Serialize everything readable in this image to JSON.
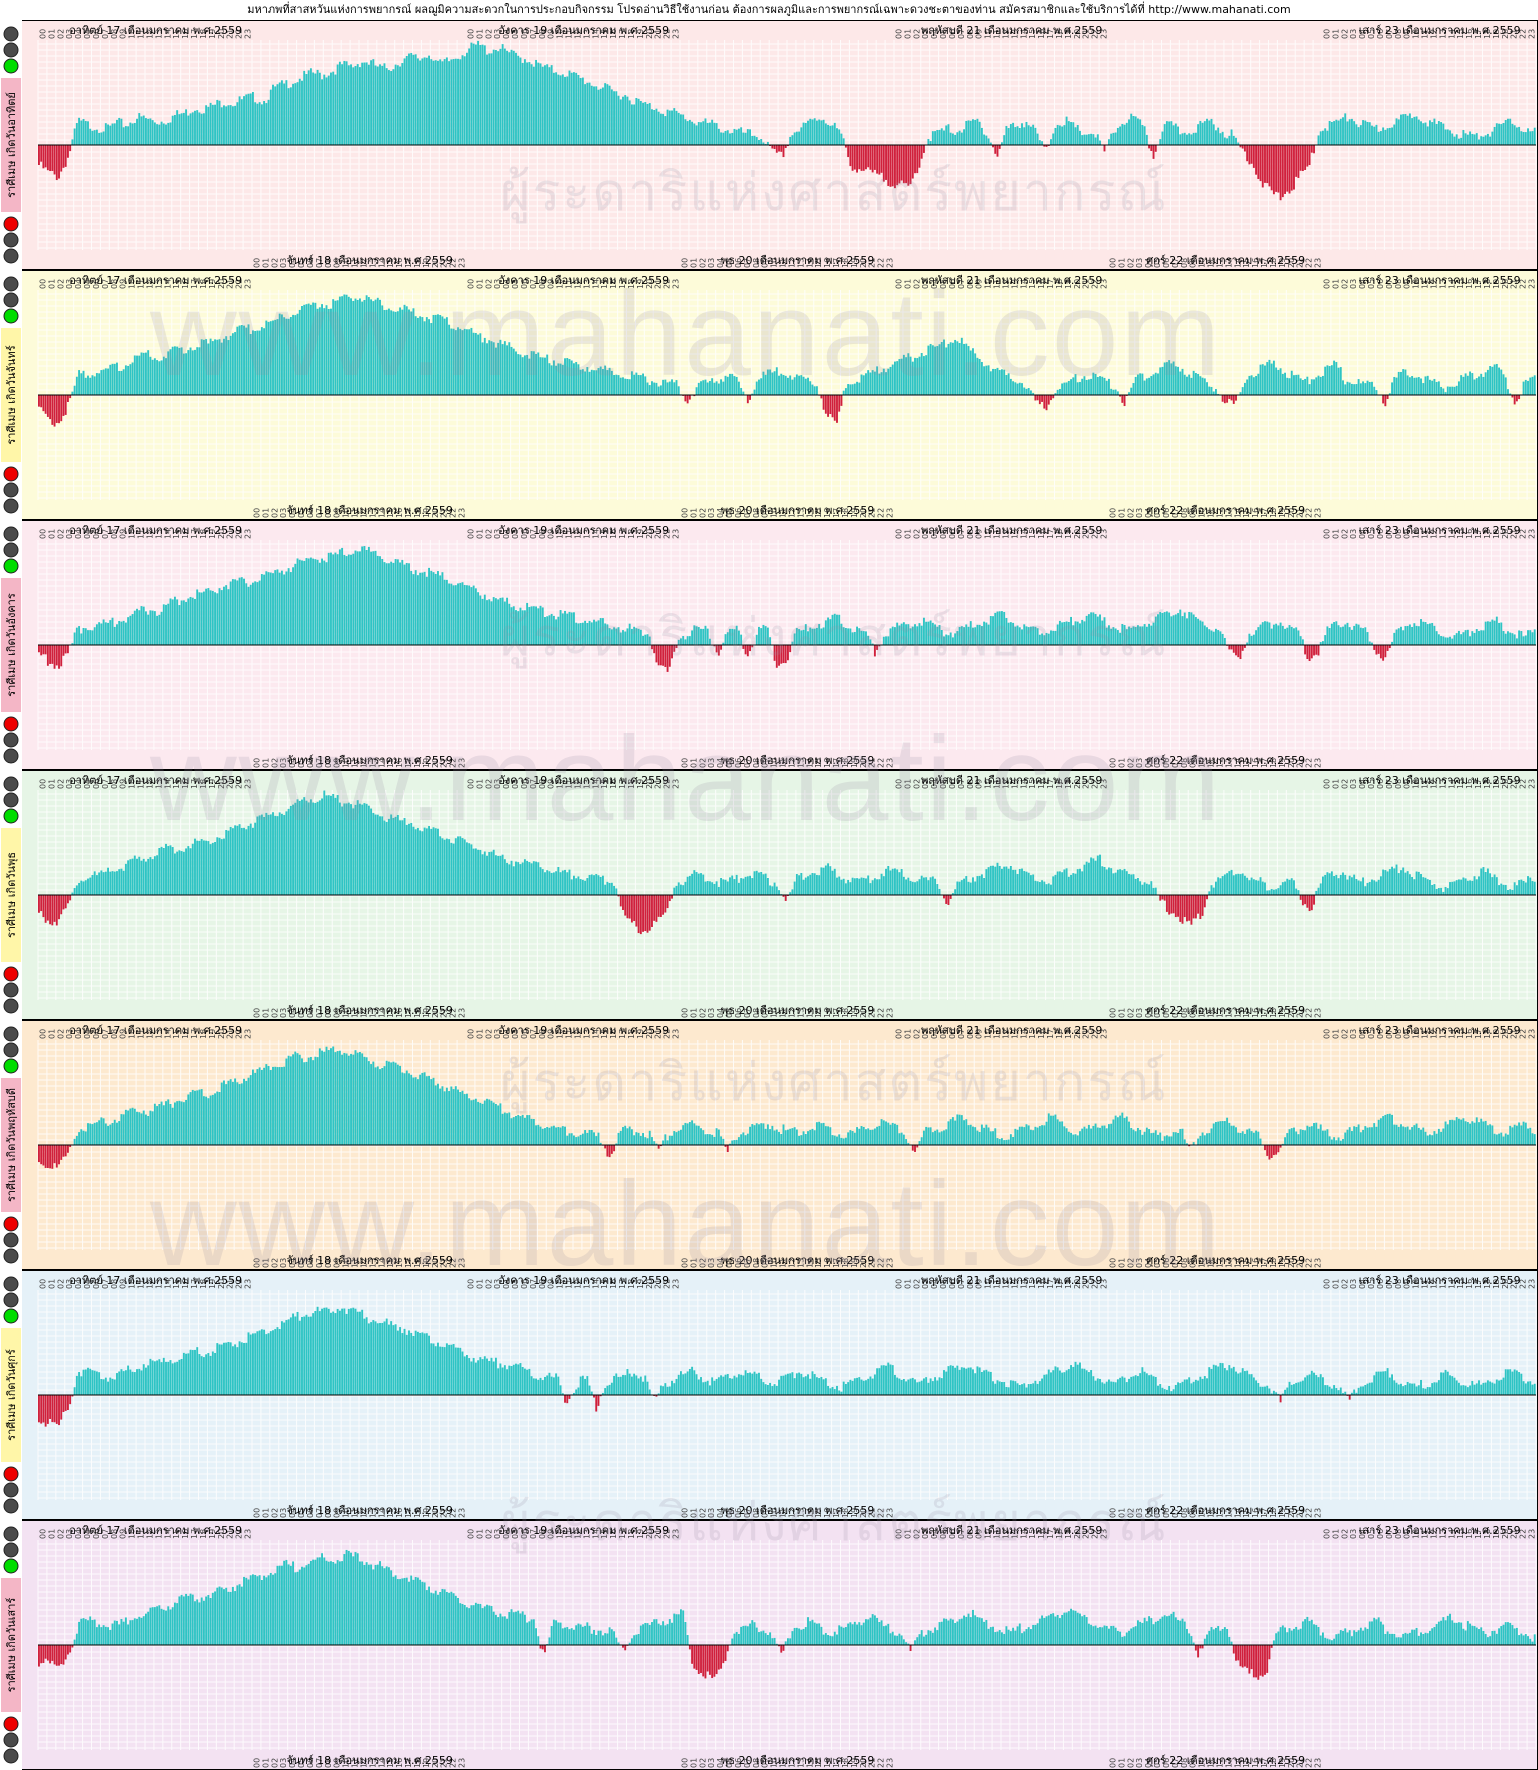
{
  "header": {
    "text": "มหาภพที่สาสหวันแห่งการพยากรณ์ ผลฌูมิความสะดวกในการประกอบกิจกรรม โปรดอ่านวิธีใช้งานก่อน ต้องการผลภูมิและการพยากรณ์เฉพาะดวงชะตาของท่าน สมัครสมาชิกและใช้บริการได้ที่  http://www.mahanati.com"
  },
  "watermarks": {
    "url": "www.mahanati.com",
    "tagline": "ผู้ระดาริแห่งศาสตร์พยากรณ์"
  },
  "colors": {
    "positive": "#2ec4c4",
    "negative": "#d0203c",
    "light_on_green": "#00dd00",
    "light_on_red": "#ee0000",
    "light_off": "#4a4a4a",
    "label_pink": "#f4b6c6",
    "panel_backgrounds": [
      "#fde8e8",
      "#fdfbd9",
      "#fce9ef",
      "#e6f5e6",
      "#fde9cf",
      "#e5f1f8",
      "#f3e2f2"
    ]
  },
  "hour_labels": [
    "00",
    "01",
    "02",
    "03",
    "04",
    "05",
    "06",
    "07",
    "08",
    "09",
    "10",
    "11",
    "12",
    "13",
    "14",
    "15",
    "16",
    "17",
    "18",
    "19",
    "20",
    "21",
    "22",
    "23"
  ],
  "top_day_labels": [
    "อาทิตย์ 17 เดือนมกราคม พ.ศ.2559",
    "อังคาร 19 เดือนมกราคม พ.ศ.2559",
    "พฤหัสบดี 21 เดือนมกราคม พ.ศ.2559",
    "เสาร์ 23 เดือนมกราคม พ.ศ.2559"
  ],
  "bottom_day_labels": [
    "จันทร์ 18 เดือนมกราคม พ.ศ.2559",
    "พุธ 20 เดือนมกราคม พ.ศ.2559",
    "ศุกร์ 22 เดือนมกราคม พ.ศ.2559"
  ],
  "chart_data": [
    {
      "type": "bar",
      "panel_label": "ราศีเมษ เกิดวันอาทิตย์",
      "x_unit": "hour",
      "days": 7,
      "values": [
        -50,
        -70,
        -80,
        -30,
        60,
        50,
        45,
        40,
        55,
        50,
        70,
        65,
        58,
        62,
        75,
        80,
        95,
        90,
        100,
        110,
        105,
        115,
        120,
        110,
        140,
        150,
        160,
        170,
        180,
        175,
        185,
        200,
        195,
        210,
        205,
        190,
        195,
        210,
        220,
        215,
        230,
        200,
        210,
        225,
        240,
        250,
        235,
        245,
        230,
        220,
        215,
        200,
        190,
        185,
        180,
        170,
        160,
        150,
        140,
        130,
        125,
        110,
        100,
        95,
        85,
        80,
        70,
        60,
        55,
        50,
        40,
        35,
        30,
        25,
        20,
        -20,
        -30,
        30,
        40,
        60,
        70,
        55,
        30,
        -50,
        -60,
        -70,
        -80,
        -90,
        -100,
        -110,
        -50,
        20,
        30,
        40,
        35,
        50,
        60,
        30,
        -30,
        40,
        50,
        60,
        30,
        -20,
        55,
        60,
        40,
        30,
        30,
        -20,
        35,
        60,
        70,
        40,
        -30,
        50,
        45,
        30,
        40,
        50,
        60,
        35,
        25,
        -10,
        -40,
        -90,
        -120,
        -130,
        -110,
        -80,
        -50,
        40,
        50,
        60,
        70,
        55,
        45,
        40,
        50,
        60,
        70,
        80,
        60,
        50,
        40,
        30,
        25,
        20,
        30,
        40,
        50,
        60,
        35,
        30
      ]
    },
    {
      "type": "bar",
      "panel_label": "ราศีเมษ เกิดวันจันทร์",
      "x_unit": "hour",
      "days": 7,
      "values": [
        -40,
        -60,
        -70,
        -20,
        50,
        55,
        60,
        65,
        70,
        80,
        90,
        100,
        95,
        105,
        110,
        120,
        130,
        125,
        140,
        150,
        160,
        165,
        170,
        180,
        190,
        200,
        210,
        220,
        230,
        225,
        235,
        250,
        245,
        240,
        230,
        220,
        215,
        210,
        200,
        195,
        190,
        180,
        170,
        160,
        150,
        140,
        130,
        120,
        110,
        100,
        95,
        90,
        85,
        80,
        75,
        70,
        65,
        60,
        55,
        50,
        45,
        40,
        35,
        30,
        25,
        -20,
        20,
        30,
        40,
        50,
        35,
        -20,
        40,
        50,
        60,
        55,
        45,
        35,
        30,
        -50,
        -80,
        30,
        40,
        50,
        60,
        70,
        80,
        90,
        100,
        110,
        120,
        130,
        140,
        120,
        100,
        80,
        60,
        50,
        40,
        30,
        -20,
        -30,
        20,
        30,
        40,
        50,
        40,
        30,
        20,
        -20,
        40,
        50,
        60,
        70,
        80,
        60,
        50,
        30,
        20,
        -20,
        -30,
        40,
        60,
        70,
        80,
        60,
        40,
        30,
        50,
        60,
        80,
        40,
        30,
        20,
        30,
        -20,
        40,
        60,
        50,
        40,
        30,
        20,
        30,
        40,
        50,
        60,
        70,
        40,
        -20,
        30,
        40
      ]
    },
    {
      "type": "bar",
      "panel_label": "ราศีเมษ เกิดวันอังคาร",
      "x_unit": "hour",
      "days": 7,
      "values": [
        -30,
        -40,
        -50,
        -20,
        40,
        45,
        50,
        55,
        60,
        70,
        80,
        90,
        85,
        100,
        110,
        120,
        125,
        130,
        140,
        150,
        160,
        155,
        165,
        170,
        180,
        190,
        200,
        210,
        220,
        215,
        225,
        230,
        240,
        235,
        230,
        220,
        210,
        200,
        190,
        185,
        180,
        170,
        160,
        150,
        140,
        130,
        120,
        110,
        100,
        95,
        90,
        85,
        80,
        75,
        70,
        65,
        60,
        55,
        50,
        45,
        40,
        35,
        30,
        -60,
        -70,
        20,
        30,
        40,
        35,
        -20,
        30,
        40,
        -30,
        30,
        40,
        -50,
        -40,
        30,
        40,
        50,
        60,
        70,
        50,
        40,
        30,
        -20,
        30,
        40,
        50,
        60,
        55,
        45,
        35,
        30,
        40,
        50,
        60,
        70,
        80,
        60,
        50,
        40,
        30,
        40,
        50,
        60,
        70,
        80,
        60,
        50,
        40,
        30,
        50,
        60,
        70,
        80,
        90,
        70,
        60,
        50,
        40,
        -20,
        -30,
        30,
        40,
        50,
        60,
        40,
        30,
        -30,
        -20,
        40,
        50,
        60,
        40,
        30,
        -20,
        -30,
        40,
        50,
        60,
        50,
        40,
        30,
        20,
        30,
        40,
        50,
        60,
        40,
        30,
        20,
        30
      ]
    },
    {
      "type": "bar",
      "panel_label": "ราศีเมษ เกิดวันพุธ",
      "x_unit": "hour",
      "days": 7,
      "values": [
        -50,
        -60,
        -70,
        -20,
        40,
        45,
        50,
        60,
        70,
        80,
        90,
        100,
        110,
        120,
        115,
        125,
        130,
        140,
        150,
        160,
        170,
        180,
        190,
        200,
        210,
        220,
        230,
        240,
        250,
        245,
        235,
        230,
        220,
        210,
        200,
        190,
        185,
        180,
        170,
        160,
        150,
        140,
        130,
        120,
        110,
        100,
        90,
        85,
        80,
        75,
        70,
        60,
        55,
        50,
        45,
        40,
        35,
        30,
        -60,
        -80,
        -90,
        -70,
        -50,
        30,
        40,
        50,
        45,
        35,
        30,
        40,
        50,
        60,
        40,
        30,
        -20,
        40,
        50,
        60,
        70,
        50,
        40,
        30,
        40,
        50,
        60,
        55,
        45,
        40,
        35,
        30,
        -20,
        30,
        40,
        50,
        60,
        70,
        80,
        60,
        50,
        40,
        30,
        50,
        60,
        70,
        80,
        90,
        70,
        60,
        50,
        40,
        30,
        -20,
        -40,
        -60,
        -80,
        -50,
        30,
        40,
        50,
        60,
        40,
        30,
        20,
        30,
        40,
        -20,
        -30,
        40,
        50,
        60,
        40,
        30,
        40,
        50,
        60,
        70,
        50,
        40,
        30,
        20,
        30,
        40,
        50,
        60,
        40,
        30,
        20,
        30,
        40
      ]
    },
    {
      "type": "bar",
      "panel_label": "ราศีเมษ เกิดวันพฤหัสบดี",
      "x_unit": "hour",
      "days": 7,
      "values": [
        -40,
        -50,
        -60,
        -20,
        40,
        50,
        55,
        60,
        70,
        80,
        90,
        85,
        95,
        100,
        110,
        120,
        130,
        125,
        140,
        150,
        160,
        170,
        180,
        190,
        200,
        210,
        220,
        215,
        225,
        230,
        240,
        235,
        225,
        220,
        210,
        200,
        195,
        190,
        180,
        170,
        160,
        150,
        140,
        130,
        120,
        110,
        100,
        90,
        80,
        70,
        60,
        50,
        45,
        40,
        35,
        30,
        25,
        20,
        -30,
        30,
        40,
        35,
        30,
        -20,
        30,
        40,
        50,
        45,
        35,
        30,
        -20,
        30,
        40,
        50,
        55,
        45,
        35,
        30,
        40,
        50,
        40,
        30,
        20,
        30,
        40,
        50,
        60,
        40,
        30,
        -20,
        30,
        40,
        50,
        60,
        70,
        50,
        40,
        30,
        20,
        30,
        40,
        50,
        60,
        70,
        50,
        40,
        30,
        40,
        50,
        60,
        70,
        50,
        40,
        30,
        20,
        30,
        40,
        -20,
        30,
        40,
        50,
        60,
        40,
        30,
        20,
        -30,
        -20,
        30,
        40,
        50,
        40,
        30,
        20,
        30,
        40,
        50,
        60,
        70,
        60,
        50,
        40,
        30,
        40,
        50,
        60,
        70,
        60,
        50,
        40,
        30,
        40,
        50,
        40
      ]
    },
    {
      "type": "bar",
      "panel_label": "ราศีเมษ เกิดวันศุกร์",
      "x_unit": "hour",
      "days": 7,
      "values": [
        -60,
        -70,
        -80,
        -30,
        60,
        55,
        50,
        45,
        50,
        60,
        70,
        80,
        75,
        85,
        90,
        100,
        110,
        105,
        115,
        120,
        130,
        140,
        150,
        160,
        170,
        180,
        190,
        200,
        210,
        205,
        215,
        220,
        210,
        200,
        190,
        180,
        175,
        170,
        160,
        150,
        140,
        130,
        120,
        110,
        100,
        90,
        85,
        80,
        75,
        70,
        60,
        50,
        45,
        40,
        -20,
        30,
        40,
        -30,
        30,
        40,
        50,
        60,
        40,
        -20,
        30,
        40,
        50,
        60,
        40,
        30,
        40,
        50,
        60,
        50,
        40,
        30,
        40,
        50,
        60,
        50,
        40,
        30,
        20,
        30,
        40,
        50,
        60,
        70,
        50,
        40,
        30,
        40,
        50,
        60,
        70,
        80,
        60,
        50,
        40,
        30,
        20,
        30,
        40,
        50,
        60,
        70,
        80,
        60,
        50,
        40,
        30,
        40,
        50,
        60,
        40,
        30,
        20,
        30,
        40,
        50,
        60,
        70,
        80,
        60,
        40,
        30,
        20,
        -20,
        30,
        40,
        50,
        40,
        30,
        20,
        -20,
        30,
        40,
        50,
        60,
        40,
        30,
        20,
        30,
        40,
        50,
        40,
        30,
        20,
        30,
        40,
        50,
        60,
        40,
        30
      ]
    },
    {
      "type": "bar",
      "panel_label": "ราศีเมษ เกิดวันเสาร์",
      "x_unit": "hour",
      "days": 7,
      "values": [
        -40,
        -50,
        -60,
        -20,
        50,
        60,
        55,
        45,
        50,
        60,
        70,
        80,
        90,
        100,
        110,
        120,
        115,
        125,
        130,
        140,
        150,
        160,
        170,
        180,
        190,
        200,
        195,
        205,
        210,
        220,
        215,
        225,
        220,
        210,
        200,
        190,
        180,
        170,
        160,
        150,
        140,
        130,
        120,
        110,
        100,
        90,
        85,
        80,
        75,
        70,
        65,
        -30,
        60,
        55,
        50,
        45,
        40,
        35,
        30,
        -20,
        30,
        40,
        50,
        60,
        70,
        80,
        -50,
        -70,
        -90,
        -60,
        30,
        40,
        50,
        40,
        30,
        -30,
        40,
        50,
        60,
        40,
        30,
        40,
        50,
        60,
        70,
        50,
        40,
        30,
        -20,
        30,
        40,
        50,
        60,
        70,
        80,
        60,
        50,
        40,
        30,
        40,
        50,
        60,
        70,
        80,
        90,
        70,
        60,
        50,
        40,
        30,
        40,
        50,
        60,
        70,
        80,
        60,
        50,
        -20,
        30,
        40,
        50,
        -50,
        -70,
        -80,
        -60,
        30,
        40,
        50,
        60,
        40,
        30,
        20,
        30,
        40,
        50,
        60,
        40,
        30,
        20,
        30,
        40,
        50,
        60,
        70,
        50,
        40,
        30,
        40,
        50,
        40,
        30,
        20
      ]
    }
  ]
}
